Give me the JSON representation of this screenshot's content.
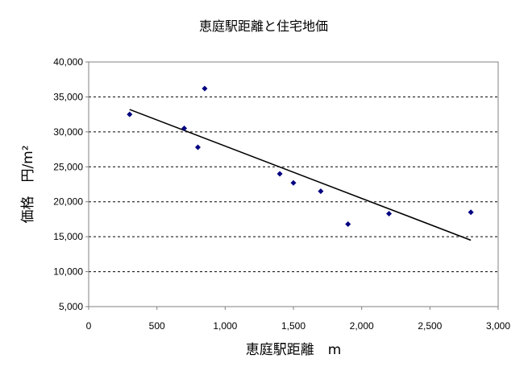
{
  "chart_data": {
    "type": "scatter",
    "title": "恵庭駅距離と住宅地価",
    "xlabel": "恵庭駅距離　m",
    "ylabel": "価格　円/m²",
    "xlim": [
      0,
      3000
    ],
    "ylim": [
      5000,
      40000
    ],
    "x_ticks": [
      0,
      500,
      1000,
      1500,
      2000,
      2500,
      3000
    ],
    "x_tick_labels": [
      "0",
      "500",
      "1,000",
      "1,500",
      "2,000",
      "2,500",
      "3,000"
    ],
    "y_ticks": [
      5000,
      10000,
      15000,
      20000,
      25000,
      30000,
      35000,
      40000
    ],
    "y_tick_labels": [
      "5,000",
      "10,000",
      "15,000",
      "20,000",
      "25,000",
      "30,000",
      "35,000",
      "40,000"
    ],
    "grid": "horizontal-dashed",
    "marker_color": "#000080",
    "trend_color": "#000000",
    "points": [
      {
        "x": 300,
        "y": 32500
      },
      {
        "x": 700,
        "y": 30500
      },
      {
        "x": 800,
        "y": 27800
      },
      {
        "x": 850,
        "y": 36200
      },
      {
        "x": 1400,
        "y": 24000
      },
      {
        "x": 1500,
        "y": 22700
      },
      {
        "x": 1700,
        "y": 21500
      },
      {
        "x": 1900,
        "y": 16800
      },
      {
        "x": 2200,
        "y": 18300
      },
      {
        "x": 2800,
        "y": 18500
      }
    ],
    "trendline": [
      {
        "x": 300,
        "y": 33200
      },
      {
        "x": 2800,
        "y": 14500
      }
    ]
  }
}
